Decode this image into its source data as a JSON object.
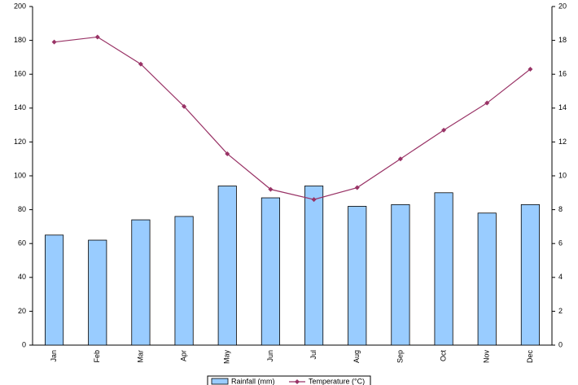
{
  "chart_data": {
    "type": "bar",
    "categories": [
      "Jan",
      "Feb",
      "Mar",
      "Apr",
      "May",
      "Jun",
      "Jul",
      "Aug",
      "Sep",
      "Oct",
      "Nov",
      "Dec"
    ],
    "series": [
      {
        "name": "Rainfall (mm)",
        "type": "bar",
        "color": "#99ccff",
        "values": [
          65,
          62,
          74,
          76,
          94,
          87,
          94,
          82,
          83,
          90,
          78,
          83
        ]
      },
      {
        "name": "Temperature (°C)",
        "type": "line",
        "axis": "y2",
        "color": "#993366",
        "values": [
          17.9,
          18.2,
          16.6,
          14.1,
          11.3,
          9.2,
          8.6,
          9.3,
          11.0,
          12.7,
          14.3,
          16.3
        ]
      }
    ],
    "ylim": [
      0,
      200
    ],
    "yticks": [
      0,
      20,
      40,
      60,
      80,
      100,
      120,
      140,
      160,
      180,
      200
    ],
    "y2lim": [
      0,
      20
    ],
    "y2ticks": [
      0,
      2,
      4,
      6,
      8,
      10,
      12,
      14,
      16,
      18,
      20
    ],
    "grid": false
  }
}
